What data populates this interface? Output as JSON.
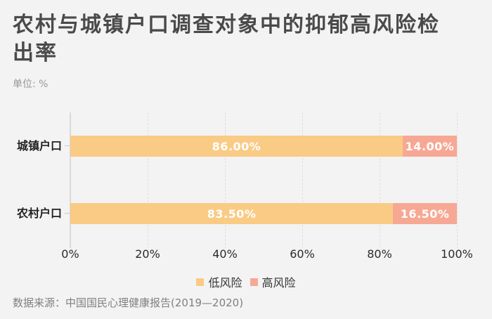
{
  "header": {
    "title": "农村与城镇户口调查对象中的抑郁高风险检出率",
    "unit": "单位: %"
  },
  "footer": {
    "source": "数据来源：中国国民心理健康报告(2019—2020)"
  },
  "colors": {
    "background": "#F3F3F3",
    "low_risk": "#FACB85",
    "high_risk": "#F7A894",
    "axis_line": "#D9D9D9",
    "gridline": "#DFDFDF",
    "title_text": "#4A4A4A",
    "unit_text": "#979797",
    "source_text": "#808080",
    "tick_text": "#2B2B2B",
    "category_text": "#222222",
    "bar_value_text": "#FFFFFF"
  },
  "chart_data": {
    "type": "bar",
    "orientation": "horizontal",
    "stacked": true,
    "title": "农村与城镇户口调查对象中的抑郁高风险检出率",
    "unit": "%",
    "categories": [
      "城镇户口",
      "农村户口"
    ],
    "category_keys": [
      "urban",
      "rural"
    ],
    "series": [
      {
        "name": "低风险",
        "key": "low-risk",
        "color_key": "low_risk",
        "values": [
          86.0,
          83.5
        ],
        "labels": [
          "86.00%",
          "83.50%"
        ]
      },
      {
        "name": "高风险",
        "key": "high-risk",
        "color_key": "high_risk",
        "values": [
          14.0,
          16.5
        ],
        "labels": [
          "14.00%",
          "16.50%"
        ]
      }
    ],
    "xlim": [
      0,
      100
    ],
    "x_ticks": [
      0,
      20,
      40,
      60,
      80,
      100
    ],
    "x_tick_labels": [
      "0%",
      "20%",
      "40%",
      "60%",
      "80%",
      "100%"
    ],
    "grid": "vertical-dashed",
    "legend_position": "bottom-center",
    "source": "数据来源：中国国民心理健康报告(2019—2020)"
  }
}
